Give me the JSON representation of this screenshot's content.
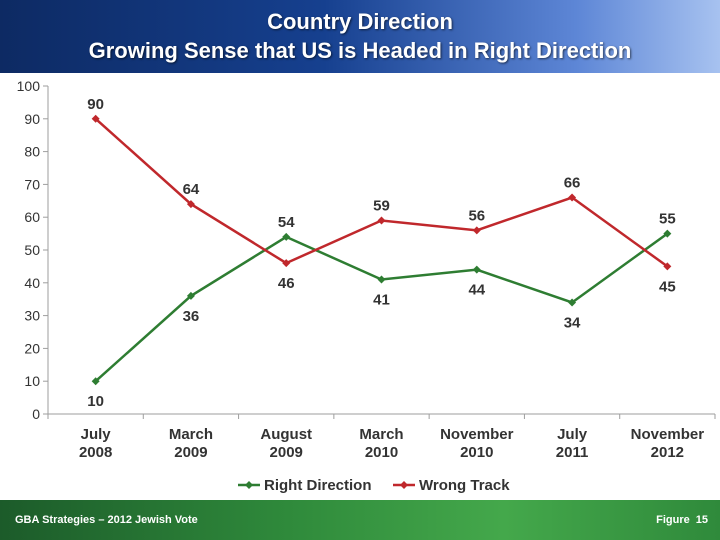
{
  "header": {
    "title_line1": "Country Direction",
    "title_line2": "Growing Sense that US is Headed in Right Direction"
  },
  "footer": {
    "source": "GBA Strategies – 2012 Jewish Vote",
    "figure_label": "Figure",
    "figure_number": "15"
  },
  "colors": {
    "right_direction": "#2e7d32",
    "wrong_track": "#c0282c",
    "header": "#16408f",
    "footer": "#2f8a3b"
  },
  "chart_data": {
    "type": "line",
    "title": "Country Direction",
    "subtitle": "Growing Sense that US is Headed in Right Direction",
    "categories": [
      [
        "July",
        "2008"
      ],
      [
        "March",
        "2009"
      ],
      [
        "August",
        "2009"
      ],
      [
        "March",
        "2010"
      ],
      [
        "November",
        "2010"
      ],
      [
        "July",
        "2011"
      ],
      [
        "November",
        "2012"
      ]
    ],
    "ylim": [
      0,
      100
    ],
    "yticks": [
      0,
      10,
      20,
      30,
      40,
      50,
      60,
      70,
      80,
      90,
      100
    ],
    "grid": false,
    "legend_position": "bottom",
    "series": [
      {
        "name": "Right Direction",
        "values": [
          10,
          36,
          54,
          41,
          44,
          34,
          55
        ],
        "label_pos": [
          "below",
          "below",
          "above",
          "below",
          "below",
          "below",
          "above"
        ]
      },
      {
        "name": "Wrong Track",
        "values": [
          90,
          64,
          46,
          59,
          56,
          66,
          45
        ],
        "label_pos": [
          "above",
          "above",
          "below",
          "above",
          "above",
          "above",
          "below"
        ]
      }
    ]
  }
}
